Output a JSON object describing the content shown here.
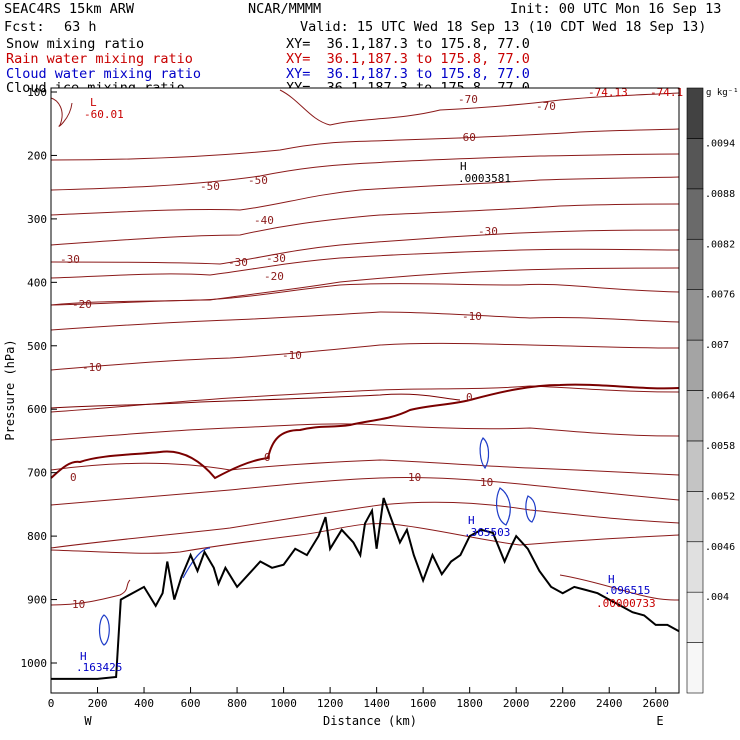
{
  "header": {
    "model": "SEAC4RS 15km ARW",
    "org": "NCAR/MMMM",
    "init": "Init: 00 UTC Mon 16 Sep 13",
    "fcst_label": "Fcst:",
    "fcst_value": "63 h",
    "valid": "Valid: 15 UTC Wed 18 Sep 13 (10 CDT Wed 18 Sep 13)",
    "fields": [
      {
        "name": "Snow mixing ratio",
        "xy": "XY=  36.1,187.3 to 175.8, 77.0",
        "color": "#000000"
      },
      {
        "name": "Rain water mixing ratio",
        "xy": "XY=  36.1,187.3 to 175.8, 77.0",
        "color": "#c80000"
      },
      {
        "name": "Cloud water mixing ratio",
        "xy": "XY=  36.1,187.3 to 175.8, 77.0",
        "color": "#0000c8"
      },
      {
        "name": "Cloud ice mixing ratio",
        "xy": "XY=  36.1,187.3 to 175.8, 77.0",
        "color": "#000000"
      }
    ]
  },
  "colorbar": {
    "unit": "g kg⁻¹",
    "ticks": [
      ".004",
      ".0046",
      ".0052",
      ".0058",
      ".0064",
      ".007",
      ".0076",
      ".0082",
      ".0088",
      ".0094"
    ],
    "gray_shades": [
      "#f7f7f7",
      "#ececec",
      "#e0e0e0",
      "#d2d2d2",
      "#c4c4c4",
      "#b4b4b4",
      "#a4a4a4",
      "#929292",
      "#7e7e7e",
      "#6a6a6a",
      "#565656",
      "#424242"
    ]
  },
  "chart_data": {
    "type": "cross-section",
    "xlabel": "Distance (km)",
    "ylabel": "Pressure (hPa)",
    "xlim": [
      0,
      2700
    ],
    "ylim": [
      1050,
      100
    ],
    "x_ticks": [
      "0",
      "200",
      "400",
      "600",
      "800",
      "1000",
      "1200",
      "1400",
      "1600",
      "1800",
      "2000",
      "2200",
      "2400",
      "2600"
    ],
    "y_ticks": [
      "100",
      "200",
      "300",
      "400",
      "500",
      "600",
      "700",
      "800",
      "900",
      "1000"
    ],
    "endpoints": {
      "left": "W",
      "right": "E"
    },
    "terrain": {
      "distance_km": [
        0,
        100,
        200,
        280,
        300,
        350,
        400,
        450,
        480,
        500,
        530,
        560,
        600,
        630,
        660,
        700,
        720,
        750,
        800,
        850,
        900,
        950,
        1000,
        1050,
        1100,
        1150,
        1180,
        1200,
        1250,
        1300,
        1330,
        1350,
        1380,
        1400,
        1430,
        1460,
        1500,
        1530,
        1560,
        1600,
        1640,
        1680,
        1720,
        1760,
        1800,
        1850,
        1900,
        1950,
        1980,
        2000,
        2050,
        2100,
        2150,
        2200,
        2250,
        2300,
        2350,
        2400,
        2450,
        2500,
        2550,
        2600,
        2650,
        2700
      ],
      "pressure_hpa": [
        1025,
        1025,
        1025,
        1022,
        900,
        890,
        880,
        910,
        890,
        840,
        900,
        865,
        830,
        855,
        825,
        850,
        875,
        850,
        880,
        860,
        840,
        850,
        845,
        820,
        830,
        800,
        770,
        820,
        790,
        810,
        830,
        780,
        760,
        820,
        740,
        770,
        810,
        790,
        830,
        870,
        830,
        860,
        840,
        830,
        800,
        790,
        795,
        840,
        815,
        800,
        820,
        855,
        880,
        890,
        880,
        885,
        890,
        900,
        910,
        920,
        925,
        940,
        940,
        950
      ]
    },
    "temperature_contours_degC": {
      "labels": [
        "-70",
        "-70",
        "-60",
        "-50",
        "-50",
        "-40",
        "-30",
        "-30",
        "-30",
        "-30",
        "-20",
        "-20",
        "-10",
        "-10",
        "-10",
        "0",
        "0",
        "0",
        "10",
        "10",
        "10"
      ]
    },
    "annotations": [
      {
        "label": "L",
        "value": "-60.01",
        "color": "#c80000"
      },
      {
        "label": "H",
        "value": ".0003581",
        "color": "#000000"
      },
      {
        "label": "H",
        "value": ".365503",
        "color": "#0000c8"
      },
      {
        "label": "H",
        "value": ".163425",
        "color": "#0000c8"
      },
      {
        "label": "H",
        "value": ".096515",
        "color": "#0000c8"
      },
      {
        "label": "",
        "value": ".00000733",
        "color": "#c80000"
      },
      {
        "label": "",
        "value": "-74.13",
        "color": "#c80000"
      },
      {
        "label": "",
        "value": "-74.1",
        "color": "#c80000"
      }
    ]
  }
}
